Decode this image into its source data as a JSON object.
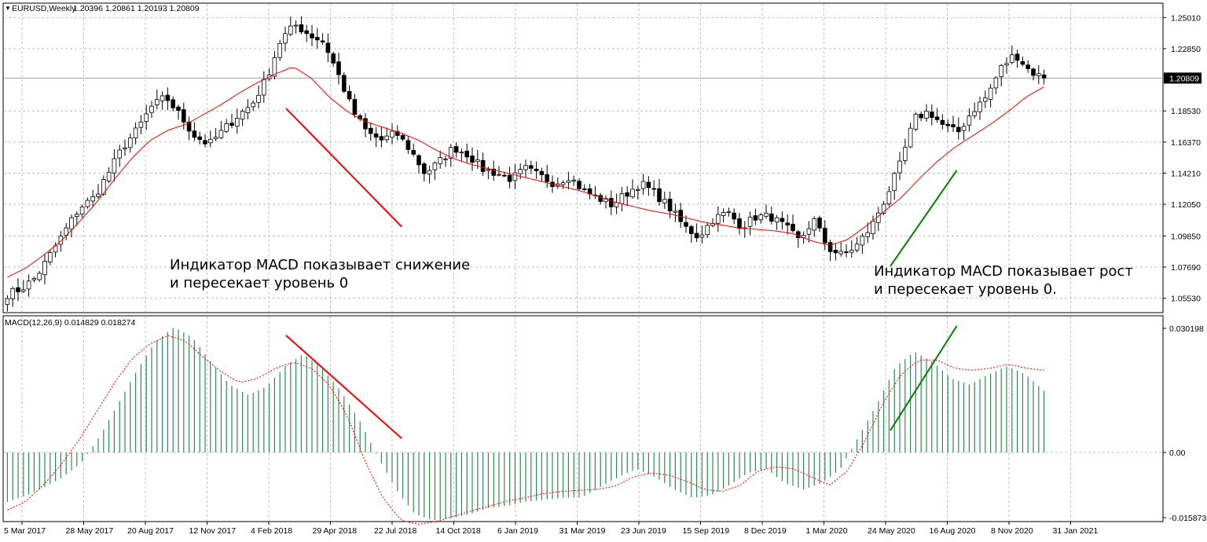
{
  "header": {
    "symbol_label": "EURUSD,Weekly",
    "ohlc": "1.20396 1.20861 1.20193 1.20809"
  },
  "macd_header": {
    "label": "MACD(12,26,9) 0.014829 0.018274"
  },
  "annotations": {
    "left_line1": "Индикатор MACD показывает снижение",
    "left_line2": "и пересекает уровень 0",
    "right_line1": "Индикатор MACD показывает рост",
    "right_line2": "и пересекает уровень 0."
  },
  "colors": {
    "up_candle": "#ffffff",
    "down_candle": "#000000",
    "wick": "#000000",
    "ma_line": "#ff0000",
    "histogram": "#2e8b57",
    "signal_line": "#ff0000",
    "grid": "#c0c0c0",
    "bear_trend": "#ff0000",
    "bull_trend": "#008000",
    "current_price_line": "#8fa3c6",
    "price_badge_bg": "#000000",
    "price_badge_text": "#ffffff"
  },
  "chart_data": [
    {
      "type": "candlestick",
      "title": "EURUSD,Weekly",
      "current_price": 1.20809,
      "ylim": [
        1.0453,
        1.2601
      ],
      "y_ticks": [
        1.2501,
        1.2285,
        1.20809,
        1.1853,
        1.1637,
        1.1421,
        1.1205,
        1.0985,
        1.0769,
        1.0553
      ],
      "x_ticks": [
        "5 Mar 2017",
        "28 May 2017",
        "20 Aug 2017",
        "12 Nov 2017",
        "4 Feb 2018",
        "29 Apr 2018",
        "22 Jul 2018",
        "14 Oct 2018",
        "6 Jan 2019",
        "31 Mar 2019",
        "23 Jun 2019",
        "15 Sep 2019",
        "8 Dec 2019",
        "1 Mar 2020",
        "24 May 2020",
        "16 Aug 2020",
        "8 Nov 2020",
        "31 Jan 2021"
      ],
      "close_series": [
        1.058,
        1.062,
        1.07,
        1.086,
        1.102,
        1.118,
        1.125,
        1.142,
        1.16,
        1.172,
        1.188,
        1.195,
        1.182,
        1.168,
        1.162,
        1.172,
        1.182,
        1.19,
        1.208,
        1.235,
        1.245,
        1.238,
        1.233,
        1.21,
        1.185,
        1.17,
        1.165,
        1.17,
        1.158,
        1.142,
        1.15,
        1.16,
        1.155,
        1.145,
        1.142,
        1.138,
        1.145,
        1.14,
        1.135,
        1.14,
        1.13,
        1.125,
        1.12,
        1.128,
        1.135,
        1.128,
        1.118,
        1.105,
        1.098,
        1.11,
        1.115,
        1.105,
        1.112,
        1.112,
        1.105,
        1.095,
        1.11,
        1.09,
        1.085,
        1.092,
        1.105,
        1.125,
        1.148,
        1.18,
        1.185,
        1.175,
        1.17,
        1.185,
        1.195,
        1.215,
        1.225,
        1.213,
        1.208
      ],
      "ma_series": [
        1.07,
        1.076,
        1.085,
        1.095,
        1.108,
        1.122,
        1.138,
        1.153,
        1.165,
        1.172,
        1.176,
        1.183,
        1.19,
        1.198,
        1.205,
        1.211,
        1.216,
        1.208,
        1.195,
        1.185,
        1.178,
        1.174,
        1.17,
        1.165,
        1.158,
        1.152,
        1.148,
        1.145,
        1.142,
        1.139,
        1.136,
        1.133,
        1.13,
        1.126,
        1.122,
        1.119,
        1.116,
        1.114,
        1.111,
        1.108,
        1.106,
        1.104,
        1.103,
        1.102,
        1.1,
        1.095,
        1.092,
        1.096,
        1.105,
        1.115,
        1.125,
        1.138,
        1.15,
        1.16,
        1.168,
        1.176,
        1.185,
        1.195,
        1.202
      ],
      "trend_lines": [
        {
          "color": "bear",
          "from": [
            "4 Feb 2018",
            1.187
          ],
          "to": [
            "22 Jul 2018",
            1.105
          ]
        },
        {
          "color": "bull",
          "from": [
            "24 May 2020",
            1.0775
          ],
          "to": [
            "16 Aug 2020",
            1.144
          ]
        }
      ]
    },
    {
      "type": "bar",
      "title": "MACD(12,26,9) 0.014829 0.018274",
      "ylim": [
        -0.015873,
        0.030198
      ],
      "y_ticks": [
        0.030198,
        0.0,
        -0.015873
      ],
      "y_tick_labels": [
        "0.030198",
        "0.00",
        "-0.015873"
      ],
      "histogram": [
        -0.012,
        -0.0105,
        -0.0085,
        -0.006,
        -0.0025,
        0.004,
        0.012,
        0.02,
        0.027,
        0.0305,
        0.028,
        0.022,
        0.0165,
        0.014,
        0.016,
        0.021,
        0.024,
        0.0205,
        0.015,
        0.008,
        -0.001,
        -0.009,
        -0.015,
        -0.0165,
        -0.016,
        -0.015,
        -0.0135,
        -0.013,
        -0.012,
        -0.0115,
        -0.011,
        -0.011,
        -0.0085,
        -0.006,
        -0.004,
        -0.006,
        -0.009,
        -0.011,
        -0.0105,
        -0.008,
        -0.005,
        -0.004,
        -0.0075,
        -0.009,
        -0.0075,
        -0.004,
        0.004,
        0.012,
        0.021,
        0.0245,
        0.022,
        0.018,
        0.0165,
        0.019,
        0.021,
        0.019,
        0.015
      ],
      "signal": [
        -0.014,
        -0.012,
        -0.008,
        -0.003,
        0.003,
        0.01,
        0.017,
        0.023,
        0.0265,
        0.0285,
        0.027,
        0.023,
        0.0195,
        0.017,
        0.018,
        0.0205,
        0.022,
        0.0205,
        0.0165,
        0.009,
        -0.002,
        -0.011,
        -0.0165,
        -0.0175,
        -0.0168,
        -0.0155,
        -0.0142,
        -0.013,
        -0.0118,
        -0.011,
        -0.01,
        -0.0095,
        -0.0092,
        -0.009,
        -0.0082,
        -0.006,
        -0.005,
        -0.0055,
        -0.007,
        -0.009,
        -0.0095,
        -0.008,
        -0.0045,
        -0.0035,
        -0.004,
        -0.006,
        -0.008,
        -0.0045,
        0.003,
        0.012,
        0.019,
        0.0225,
        0.0225,
        0.0205,
        0.02,
        0.0205,
        0.0215,
        0.0205,
        0.02
      ]
    }
  ]
}
